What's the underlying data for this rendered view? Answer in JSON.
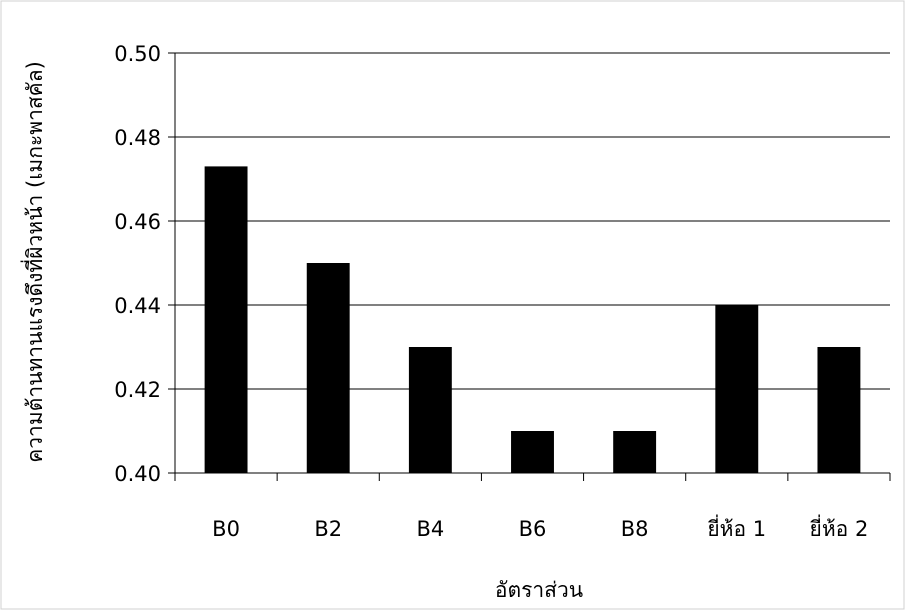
{
  "chart_data": {
    "type": "bar",
    "title": "",
    "xlabel": "อัตราส่วน",
    "ylabel": "ความต้านทานแรงดึงที่ผิวหน้า (เมกะพาสคัล)",
    "categories": [
      "B0",
      "B2",
      "B4",
      "B6",
      "B8",
      "ยี่ห้อ 1",
      "ยี่ห้อ 2"
    ],
    "values": [
      0.473,
      0.45,
      0.43,
      0.41,
      0.41,
      0.44,
      0.43
    ],
    "ylim": [
      0.4,
      0.5
    ],
    "yticks": [
      "0.40",
      "0.42",
      "0.44",
      "0.46",
      "0.48",
      "0.50"
    ],
    "grid": true,
    "legend": "none",
    "bar_color": "#000000",
    "gridline_color": "#000000"
  }
}
